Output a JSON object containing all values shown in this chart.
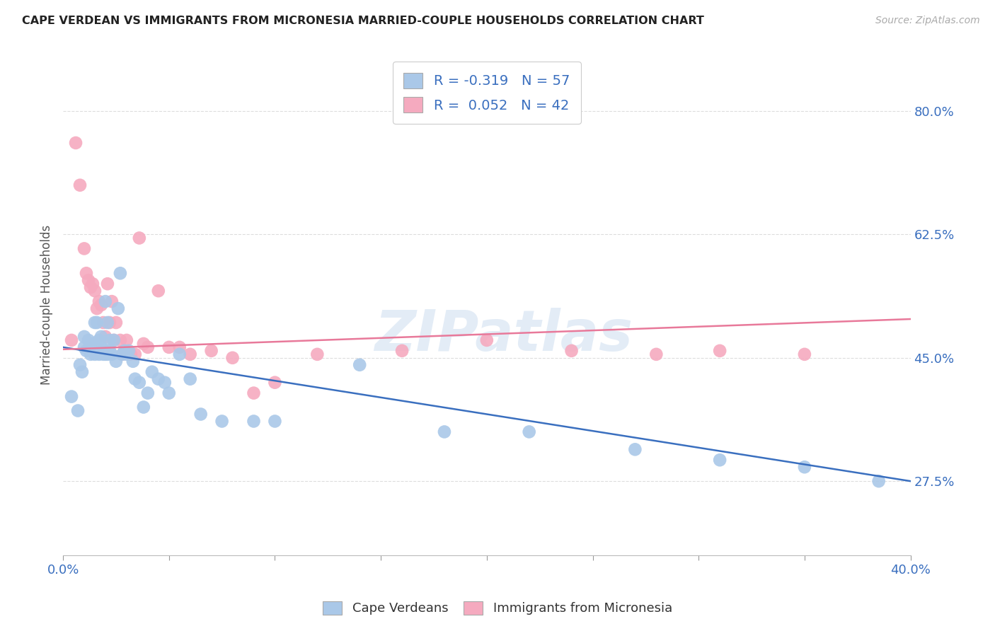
{
  "title": "CAPE VERDEAN VS IMMIGRANTS FROM MICRONESIA MARRIED-COUPLE HOUSEHOLDS CORRELATION CHART",
  "source": "Source: ZipAtlas.com",
  "ylabel": "Married-couple Households",
  "ytick_labels": [
    "27.5%",
    "45.0%",
    "62.5%",
    "80.0%"
  ],
  "ytick_values": [
    0.275,
    0.45,
    0.625,
    0.8
  ],
  "xlim": [
    0.0,
    0.4
  ],
  "ylim": [
    0.17,
    0.88
  ],
  "legend_label1": "Cape Verdeans",
  "legend_label2": "Immigrants from Micronesia",
  "blue_R": "-0.319",
  "blue_N": "57",
  "pink_R": "0.052",
  "pink_N": "42",
  "blue_color": "#aac8e8",
  "pink_color": "#f5aabf",
  "blue_line_color": "#3a6fbf",
  "pink_line_color": "#e8799a",
  "watermark": "ZIPatlas",
  "blue_line_x0": 0.0,
  "blue_line_y0": 0.465,
  "blue_line_x1": 0.4,
  "blue_line_y1": 0.275,
  "pink_line_x0": 0.0,
  "pink_line_y0": 0.462,
  "pink_line_x1": 0.4,
  "pink_line_y1": 0.505,
  "blue_scatter_x": [
    0.004,
    0.007,
    0.008,
    0.009,
    0.01,
    0.01,
    0.011,
    0.012,
    0.013,
    0.014,
    0.015,
    0.015,
    0.016,
    0.016,
    0.017,
    0.017,
    0.018,
    0.018,
    0.019,
    0.019,
    0.02,
    0.02,
    0.021,
    0.021,
    0.022,
    0.022,
    0.023,
    0.024,
    0.025,
    0.026,
    0.027,
    0.028,
    0.029,
    0.03,
    0.031,
    0.033,
    0.034,
    0.036,
    0.038,
    0.04,
    0.042,
    0.045,
    0.048,
    0.05,
    0.055,
    0.06,
    0.065,
    0.075,
    0.09,
    0.1,
    0.14,
    0.18,
    0.22,
    0.27,
    0.31,
    0.35,
    0.385
  ],
  "blue_scatter_y": [
    0.395,
    0.375,
    0.44,
    0.43,
    0.465,
    0.48,
    0.46,
    0.475,
    0.455,
    0.47,
    0.5,
    0.455,
    0.47,
    0.5,
    0.475,
    0.455,
    0.465,
    0.48,
    0.455,
    0.46,
    0.53,
    0.455,
    0.455,
    0.5,
    0.475,
    0.46,
    0.455,
    0.475,
    0.445,
    0.52,
    0.57,
    0.455,
    0.46,
    0.455,
    0.46,
    0.445,
    0.42,
    0.415,
    0.38,
    0.4,
    0.43,
    0.42,
    0.415,
    0.4,
    0.455,
    0.42,
    0.37,
    0.36,
    0.36,
    0.36,
    0.44,
    0.345,
    0.345,
    0.32,
    0.305,
    0.295,
    0.275
  ],
  "pink_scatter_x": [
    0.004,
    0.006,
    0.008,
    0.01,
    0.011,
    0.012,
    0.013,
    0.014,
    0.015,
    0.016,
    0.017,
    0.018,
    0.019,
    0.02,
    0.021,
    0.022,
    0.023,
    0.024,
    0.025,
    0.027,
    0.028,
    0.03,
    0.032,
    0.034,
    0.036,
    0.038,
    0.04,
    0.045,
    0.05,
    0.055,
    0.06,
    0.07,
    0.08,
    0.09,
    0.1,
    0.12,
    0.16,
    0.2,
    0.24,
    0.28,
    0.31,
    0.35
  ],
  "pink_scatter_y": [
    0.475,
    0.755,
    0.695,
    0.605,
    0.57,
    0.56,
    0.55,
    0.555,
    0.545,
    0.52,
    0.53,
    0.525,
    0.5,
    0.48,
    0.555,
    0.5,
    0.53,
    0.475,
    0.5,
    0.475,
    0.455,
    0.475,
    0.455,
    0.455,
    0.62,
    0.47,
    0.465,
    0.545,
    0.465,
    0.465,
    0.455,
    0.46,
    0.45,
    0.4,
    0.415,
    0.455,
    0.46,
    0.475,
    0.46,
    0.455,
    0.46,
    0.455
  ],
  "background_color": "#ffffff",
  "grid_color": "#dddddd"
}
